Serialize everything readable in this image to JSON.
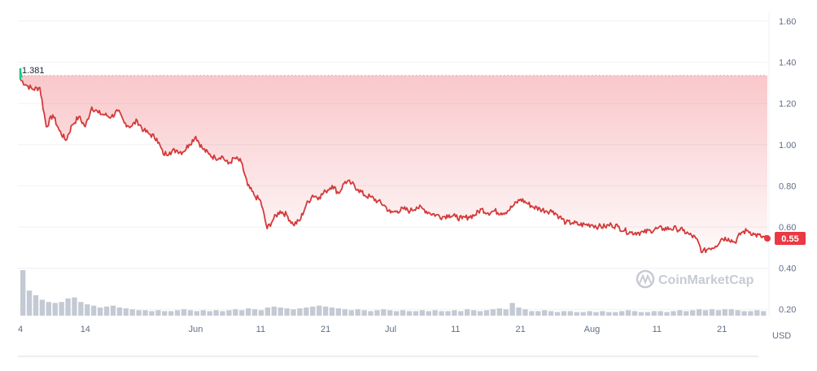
{
  "chart_data": {
    "type": "area",
    "currency": "USD",
    "watermark": "CoinMarketCap",
    "start_marker_color": "#16c784",
    "line_color": "#d33a3a",
    "badge_color": "#ea3943",
    "reference": {
      "value": 1.381,
      "label": "1.381"
    },
    "current": {
      "value": 0.55,
      "label": "0.55"
    },
    "y_axis": {
      "ticks": [
        {
          "value": 1.6,
          "label": "1.60"
        },
        {
          "value": 1.4,
          "label": "1.40"
        },
        {
          "value": 1.2,
          "label": "1.20"
        },
        {
          "value": 1.0,
          "label": "1.00"
        },
        {
          "value": 0.8,
          "label": "0.80"
        },
        {
          "value": 0.6,
          "label": "0.60"
        },
        {
          "value": 0.4,
          "label": "0.40"
        },
        {
          "value": 0.2,
          "label": "0.20"
        }
      ],
      "price_range": [
        0.4,
        1.6
      ],
      "unit": "USD"
    },
    "x_axis": {
      "range": [
        0,
        115
      ],
      "ticks": [
        {
          "day": 0,
          "label": "4"
        },
        {
          "day": 10,
          "label": "14"
        },
        {
          "day": 27,
          "label": "Jun"
        },
        {
          "day": 37,
          "label": "11"
        },
        {
          "day": 47,
          "label": "21"
        },
        {
          "day": 57,
          "label": "Jul"
        },
        {
          "day": 67,
          "label": "11"
        },
        {
          "day": 77,
          "label": "21"
        },
        {
          "day": 88,
          "label": "Aug"
        },
        {
          "day": 98,
          "label": "11"
        },
        {
          "day": 108,
          "label": "21"
        }
      ]
    },
    "price_series": [
      [
        0,
        1.36
      ],
      [
        1,
        1.33
      ],
      [
        2,
        1.31
      ],
      [
        3,
        1.32
      ],
      [
        4,
        1.12
      ],
      [
        5,
        1.18
      ],
      [
        6,
        1.1
      ],
      [
        7,
        1.05
      ],
      [
        8,
        1.13
      ],
      [
        9,
        1.17
      ],
      [
        10,
        1.12
      ],
      [
        11,
        1.22
      ],
      [
        12,
        1.19
      ],
      [
        13,
        1.18
      ],
      [
        14,
        1.17
      ],
      [
        15,
        1.2
      ],
      [
        16,
        1.14
      ],
      [
        17,
        1.12
      ],
      [
        18,
        1.15
      ],
      [
        19,
        1.1
      ],
      [
        20,
        1.08
      ],
      [
        21,
        1.06
      ],
      [
        22,
        0.98
      ],
      [
        23,
        0.99
      ],
      [
        24,
        1.0
      ],
      [
        25,
        0.99
      ],
      [
        26,
        1.03
      ],
      [
        27,
        1.07
      ],
      [
        28,
        1.01
      ],
      [
        29,
        0.98
      ],
      [
        30,
        0.96
      ],
      [
        31,
        0.97
      ],
      [
        32,
        0.93
      ],
      [
        33,
        0.96
      ],
      [
        34,
        0.94
      ],
      [
        35,
        0.82
      ],
      [
        36,
        0.77
      ],
      [
        37,
        0.74
      ],
      [
        38,
        0.6
      ],
      [
        39,
        0.65
      ],
      [
        40,
        0.69
      ],
      [
        41,
        0.67
      ],
      [
        42,
        0.62
      ],
      [
        43,
        0.64
      ],
      [
        44,
        0.72
      ],
      [
        45,
        0.77
      ],
      [
        46,
        0.76
      ],
      [
        47,
        0.79
      ],
      [
        48,
        0.82
      ],
      [
        49,
        0.78
      ],
      [
        50,
        0.84
      ],
      [
        51,
        0.83
      ],
      [
        52,
        0.8
      ],
      [
        53,
        0.77
      ],
      [
        54,
        0.76
      ],
      [
        55,
        0.74
      ],
      [
        56,
        0.72
      ],
      [
        57,
        0.68
      ],
      [
        58,
        0.69
      ],
      [
        59,
        0.7
      ],
      [
        60,
        0.69
      ],
      [
        61,
        0.71
      ],
      [
        62,
        0.7
      ],
      [
        63,
        0.68
      ],
      [
        64,
        0.67
      ],
      [
        65,
        0.66
      ],
      [
        66,
        0.67
      ],
      [
        67,
        0.66
      ],
      [
        68,
        0.65
      ],
      [
        69,
        0.66
      ],
      [
        70,
        0.67
      ],
      [
        71,
        0.7
      ],
      [
        72,
        0.68
      ],
      [
        73,
        0.69
      ],
      [
        74,
        0.68
      ],
      [
        75,
        0.69
      ],
      [
        76,
        0.72
      ],
      [
        77,
        0.75
      ],
      [
        78,
        0.73
      ],
      [
        79,
        0.71
      ],
      [
        80,
        0.7
      ],
      [
        81,
        0.69
      ],
      [
        82,
        0.69
      ],
      [
        83,
        0.66
      ],
      [
        84,
        0.63
      ],
      [
        85,
        0.63
      ],
      [
        86,
        0.62
      ],
      [
        87,
        0.62
      ],
      [
        88,
        0.62
      ],
      [
        89,
        0.61
      ],
      [
        90,
        0.61
      ],
      [
        91,
        0.62
      ],
      [
        92,
        0.61
      ],
      [
        93,
        0.59
      ],
      [
        94,
        0.58
      ],
      [
        95,
        0.58
      ],
      [
        96,
        0.58
      ],
      [
        97,
        0.59
      ],
      [
        98,
        0.6
      ],
      [
        99,
        0.6
      ],
      [
        100,
        0.6
      ],
      [
        101,
        0.6
      ],
      [
        102,
        0.59
      ],
      [
        103,
        0.57
      ],
      [
        104,
        0.55
      ],
      [
        105,
        0.48
      ],
      [
        106,
        0.5
      ],
      [
        107,
        0.51
      ],
      [
        108,
        0.55
      ],
      [
        109,
        0.55
      ],
      [
        110,
        0.53
      ],
      [
        111,
        0.58
      ],
      [
        112,
        0.59
      ],
      [
        113,
        0.57
      ],
      [
        114,
        0.56
      ],
      [
        115,
        0.55
      ]
    ],
    "volume": {
      "color": "#c4cad4",
      "relative": [
        1.0,
        0.55,
        0.45,
        0.35,
        0.3,
        0.28,
        0.3,
        0.38,
        0.4,
        0.3,
        0.25,
        0.22,
        0.18,
        0.2,
        0.22,
        0.18,
        0.16,
        0.14,
        0.12,
        0.12,
        0.1,
        0.12,
        0.1,
        0.1,
        0.12,
        0.14,
        0.12,
        0.1,
        0.12,
        0.1,
        0.12,
        0.1,
        0.12,
        0.14,
        0.12,
        0.16,
        0.14,
        0.12,
        0.18,
        0.2,
        0.18,
        0.16,
        0.14,
        0.16,
        0.18,
        0.2,
        0.22,
        0.2,
        0.18,
        0.16,
        0.14,
        0.12,
        0.14,
        0.12,
        0.1,
        0.12,
        0.14,
        0.12,
        0.1,
        0.12,
        0.1,
        0.1,
        0.12,
        0.1,
        0.12,
        0.1,
        0.1,
        0.12,
        0.1,
        0.14,
        0.12,
        0.1,
        0.12,
        0.14,
        0.16,
        0.14,
        0.28,
        0.18,
        0.14,
        0.1,
        0.1,
        0.12,
        0.1,
        0.08,
        0.1,
        0.1,
        0.08,
        0.08,
        0.1,
        0.08,
        0.1,
        0.08,
        0.08,
        0.1,
        0.12,
        0.1,
        0.08,
        0.08,
        0.1,
        0.1,
        0.08,
        0.1,
        0.12,
        0.1,
        0.12,
        0.14,
        0.12,
        0.14,
        0.12,
        0.14,
        0.14,
        0.12,
        0.1,
        0.1,
        0.12,
        0.1
      ]
    }
  }
}
